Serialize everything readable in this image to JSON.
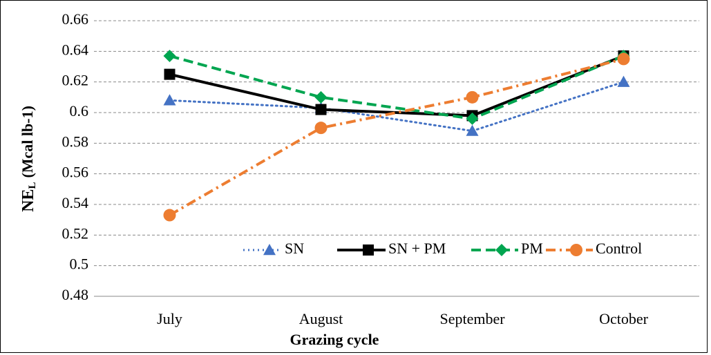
{
  "chart_data": {
    "type": "line",
    "x_label": "Grazing cycle",
    "y_label": {
      "main": "NE",
      "subscript": "L",
      "unit": "(Mcal lb-1)"
    },
    "categories": [
      "July",
      "August",
      "September",
      "October"
    ],
    "series": [
      {
        "name": "SN",
        "color": "#4472c4",
        "line": "dotted",
        "marker": "triangle",
        "values": [
          0.608,
          0.603,
          0.588,
          0.62
        ]
      },
      {
        "name": "SN + PM",
        "color": "#000000",
        "line": "solid",
        "marker": "square",
        "values": [
          0.625,
          0.602,
          0.598,
          0.637
        ]
      },
      {
        "name": "PM",
        "color": "#00a550",
        "line": "dashed",
        "marker": "diamond",
        "values": [
          0.637,
          0.61,
          0.596,
          0.637
        ]
      },
      {
        "name": "Control",
        "color": "#ed7d31",
        "line": "dashdot",
        "marker": "circle",
        "values": [
          0.533,
          0.59,
          0.61,
          0.635
        ]
      }
    ],
    "ylim": [
      0.48,
      0.66
    ],
    "yticks": [
      0.48,
      0.5,
      0.52,
      0.54,
      0.56,
      0.58,
      0.6,
      0.62,
      0.64,
      0.66
    ],
    "grid": true,
    "legend": "bottom-right"
  }
}
